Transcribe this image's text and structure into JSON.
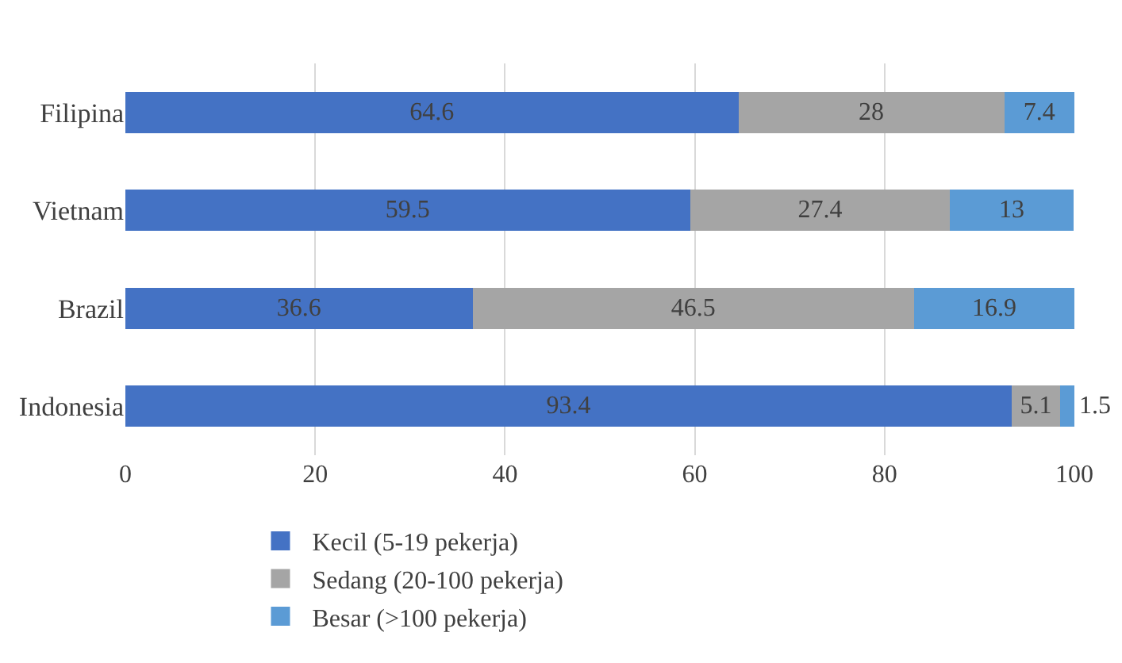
{
  "chart_data": {
    "type": "bar",
    "orientation": "horizontal",
    "stacked": true,
    "data_labels": true,
    "categories": [
      "Filipina",
      "Vietnam",
      "Brazil",
      "Indonesia"
    ],
    "series": [
      {
        "name": "Kecil (5-19 pekerja)",
        "color": "#4472c4",
        "values": [
          64.6,
          59.5,
          36.6,
          93.4
        ]
      },
      {
        "name": "Sedang (20-100 pekerja)",
        "color": "#a5a5a5",
        "values": [
          28,
          27.4,
          46.5,
          5.1
        ]
      },
      {
        "name": "Besar (>100 pekerja)",
        "color": "#5b9bd5",
        "values": [
          7.4,
          13,
          16.9,
          1.5
        ]
      }
    ],
    "xlim": [
      0,
      100
    ],
    "xticks": [
      0,
      20,
      40,
      60,
      80,
      100
    ],
    "grid": "x",
    "legend": "bottom"
  }
}
